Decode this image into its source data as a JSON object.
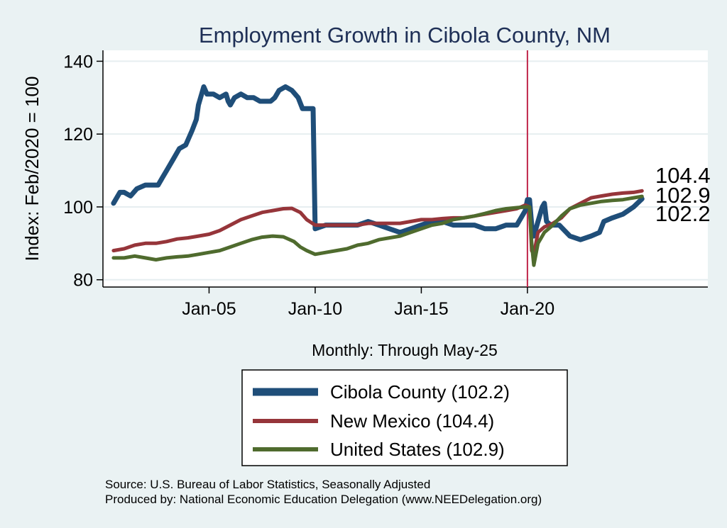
{
  "chart_data": {
    "type": "line",
    "title": "Employment Growth in Cibola  County, NM",
    "ylabel": "Index: Feb/2020 = 100",
    "xlabel": "Monthly: Through May-25",
    "ylim": [
      78,
      143
    ],
    "xlim": [
      2000.0,
      2028.5
    ],
    "yticks": [
      80,
      100,
      120,
      140
    ],
    "xticks": [
      {
        "label": "Jan-05",
        "value": 2005.0
      },
      {
        "label": "Jan-10",
        "value": 2010.0
      },
      {
        "label": "Jan-15",
        "value": 2015.0
      },
      {
        "label": "Jan-20",
        "value": 2020.0
      }
    ],
    "vline": 2020.0,
    "grid": "horizontal",
    "series": [
      {
        "name": "Cibola  County (102.2)",
        "color": "#1f4e79",
        "points": [
          [
            2000.5,
            101
          ],
          [
            2000.8,
            104
          ],
          [
            2001.0,
            104
          ],
          [
            2001.3,
            103
          ],
          [
            2001.6,
            105
          ],
          [
            2002.0,
            106
          ],
          [
            2002.3,
            106
          ],
          [
            2002.6,
            106
          ],
          [
            2002.8,
            108
          ],
          [
            2003.0,
            110
          ],
          [
            2003.3,
            113
          ],
          [
            2003.6,
            116
          ],
          [
            2003.9,
            117
          ],
          [
            2004.2,
            121
          ],
          [
            2004.4,
            124
          ],
          [
            2004.5,
            128
          ],
          [
            2004.6,
            130
          ],
          [
            2004.75,
            133
          ],
          [
            2004.9,
            131
          ],
          [
            2005.2,
            131
          ],
          [
            2005.5,
            130
          ],
          [
            2005.8,
            131
          ],
          [
            2005.9,
            129
          ],
          [
            2006.0,
            128
          ],
          [
            2006.2,
            130
          ],
          [
            2006.5,
            131
          ],
          [
            2006.8,
            130
          ],
          [
            2007.1,
            130
          ],
          [
            2007.4,
            129
          ],
          [
            2007.6,
            129
          ],
          [
            2007.9,
            129
          ],
          [
            2008.1,
            130
          ],
          [
            2008.3,
            132
          ],
          [
            2008.6,
            133
          ],
          [
            2008.9,
            132
          ],
          [
            2009.2,
            130
          ],
          [
            2009.4,
            127
          ],
          [
            2009.8,
            127
          ],
          [
            2009.9,
            127
          ],
          [
            2010.0,
            94
          ],
          [
            2010.5,
            95
          ],
          [
            2011.0,
            95
          ],
          [
            2011.5,
            95
          ],
          [
            2012.0,
            95
          ],
          [
            2012.5,
            96
          ],
          [
            2013.0,
            95
          ],
          [
            2013.5,
            94
          ],
          [
            2014.0,
            93
          ],
          [
            2014.5,
            94
          ],
          [
            2015.0,
            95
          ],
          [
            2015.5,
            96
          ],
          [
            2016.0,
            96
          ],
          [
            2016.5,
            95
          ],
          [
            2017.0,
            95
          ],
          [
            2017.5,
            95
          ],
          [
            2018.0,
            94
          ],
          [
            2018.5,
            94
          ],
          [
            2019.0,
            95
          ],
          [
            2019.5,
            95
          ],
          [
            2019.9,
            99
          ],
          [
            2020.0,
            102
          ],
          [
            2020.1,
            102
          ],
          [
            2020.2,
            95
          ],
          [
            2020.3,
            92
          ],
          [
            2020.5,
            96
          ],
          [
            2020.7,
            100
          ],
          [
            2020.8,
            101
          ],
          [
            2020.9,
            96
          ],
          [
            2021.1,
            95
          ],
          [
            2021.5,
            95
          ],
          [
            2022.0,
            92
          ],
          [
            2022.5,
            91
          ],
          [
            2023.0,
            92
          ],
          [
            2023.4,
            93
          ],
          [
            2023.6,
            96
          ],
          [
            2024.0,
            97
          ],
          [
            2024.5,
            98
          ],
          [
            2025.0,
            100
          ],
          [
            2025.4,
            102.2
          ]
        ]
      },
      {
        "name": "New Mexico (104.4)",
        "color": "#96353a",
        "points": [
          [
            2000.5,
            88
          ],
          [
            2001.0,
            88.5
          ],
          [
            2001.5,
            89.5
          ],
          [
            2002.0,
            90
          ],
          [
            2002.5,
            90
          ],
          [
            2003.0,
            90.5
          ],
          [
            2003.5,
            91.2
          ],
          [
            2004.0,
            91.5
          ],
          [
            2004.5,
            92
          ],
          [
            2005.0,
            92.5
          ],
          [
            2005.5,
            93.5
          ],
          [
            2006.0,
            95
          ],
          [
            2006.5,
            96.5
          ],
          [
            2007.0,
            97.5
          ],
          [
            2007.5,
            98.5
          ],
          [
            2008.0,
            99
          ],
          [
            2008.5,
            99.5
          ],
          [
            2008.9,
            99.6
          ],
          [
            2009.3,
            98.5
          ],
          [
            2009.6,
            96.5
          ],
          [
            2010.0,
            95
          ],
          [
            2010.5,
            95
          ],
          [
            2011.0,
            95
          ],
          [
            2011.5,
            95
          ],
          [
            2012.0,
            95
          ],
          [
            2012.5,
            95.5
          ],
          [
            2013.0,
            95.5
          ],
          [
            2013.5,
            95.5
          ],
          [
            2014.0,
            95.5
          ],
          [
            2014.5,
            96
          ],
          [
            2015.0,
            96.5
          ],
          [
            2015.5,
            96.5
          ],
          [
            2016.0,
            96.8
          ],
          [
            2016.5,
            97
          ],
          [
            2017.0,
            97
          ],
          [
            2017.5,
            97.5
          ],
          [
            2018.0,
            98
          ],
          [
            2018.5,
            98.5
          ],
          [
            2019.0,
            99
          ],
          [
            2019.5,
            99.5
          ],
          [
            2019.9,
            100.5
          ],
          [
            2020.1,
            100
          ],
          [
            2020.2,
            88
          ],
          [
            2020.3,
            87
          ],
          [
            2020.5,
            93
          ],
          [
            2020.8,
            94.5
          ],
          [
            2021.2,
            95.5
          ],
          [
            2021.6,
            97
          ],
          [
            2022.0,
            99.5
          ],
          [
            2022.5,
            101
          ],
          [
            2023.0,
            102.5
          ],
          [
            2023.5,
            103
          ],
          [
            2024.0,
            103.5
          ],
          [
            2024.5,
            103.8
          ],
          [
            2025.0,
            104
          ],
          [
            2025.4,
            104.4
          ]
        ]
      },
      {
        "name": "United States (102.9)",
        "color": "#4f6b2e",
        "points": [
          [
            2000.5,
            86
          ],
          [
            2001.0,
            86
          ],
          [
            2001.5,
            86.5
          ],
          [
            2002.0,
            86
          ],
          [
            2002.5,
            85.5
          ],
          [
            2003.0,
            86
          ],
          [
            2003.5,
            86.3
          ],
          [
            2004.0,
            86.5
          ],
          [
            2004.5,
            87
          ],
          [
            2005.0,
            87.5
          ],
          [
            2005.5,
            88
          ],
          [
            2006.0,
            89
          ],
          [
            2006.5,
            90
          ],
          [
            2007.0,
            91
          ],
          [
            2007.5,
            91.7
          ],
          [
            2008.0,
            92
          ],
          [
            2008.5,
            91.8
          ],
          [
            2009.0,
            90.5
          ],
          [
            2009.3,
            89
          ],
          [
            2009.6,
            88
          ],
          [
            2010.0,
            87
          ],
          [
            2010.5,
            87.5
          ],
          [
            2011.0,
            88
          ],
          [
            2011.5,
            88.5
          ],
          [
            2012.0,
            89.5
          ],
          [
            2012.5,
            90
          ],
          [
            2013.0,
            91
          ],
          [
            2013.5,
            91.5
          ],
          [
            2014.0,
            92
          ],
          [
            2014.5,
            93
          ],
          [
            2015.0,
            94
          ],
          [
            2015.5,
            95
          ],
          [
            2016.0,
            95.5
          ],
          [
            2016.5,
            96.5
          ],
          [
            2017.0,
            97
          ],
          [
            2017.5,
            97.5
          ],
          [
            2018.0,
            98.2
          ],
          [
            2018.5,
            99
          ],
          [
            2019.0,
            99.5
          ],
          [
            2019.5,
            99.8
          ],
          [
            2019.9,
            100
          ],
          [
            2020.1,
            100
          ],
          [
            2020.2,
            90
          ],
          [
            2020.3,
            84
          ],
          [
            2020.5,
            90
          ],
          [
            2020.8,
            93
          ],
          [
            2021.2,
            95
          ],
          [
            2021.6,
            97.5
          ],
          [
            2022.0,
            99.5
          ],
          [
            2022.5,
            100.5
          ],
          [
            2023.0,
            101
          ],
          [
            2023.5,
            101.5
          ],
          [
            2024.0,
            101.8
          ],
          [
            2024.5,
            102
          ],
          [
            2025.0,
            102.5
          ],
          [
            2025.4,
            102.9
          ]
        ]
      }
    ],
    "end_labels": [
      "104.4",
      "102.9",
      "102.2"
    ]
  },
  "source_line": "Source: U.S. Bureau of Labor Statistics, Seasonally Adjusted",
  "producer_line": "Produced by: National Economic Education Delegation (www.NEEDelegation.org)"
}
